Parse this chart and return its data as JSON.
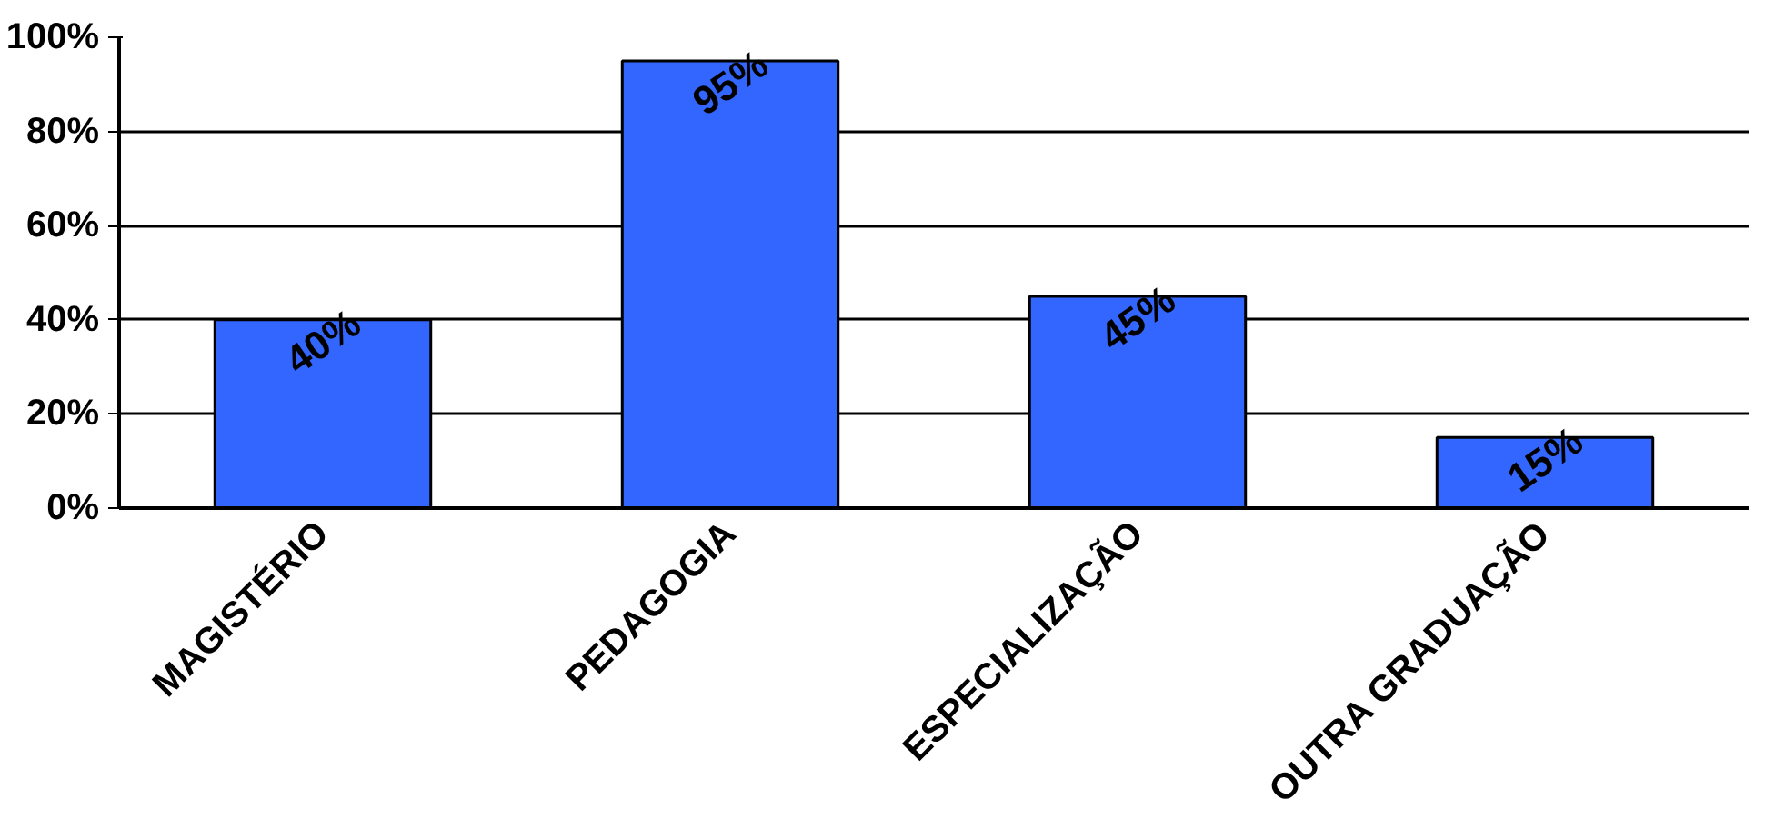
{
  "chart_data": {
    "type": "bar",
    "categories": [
      "MAGISTÉRIO",
      "PEDAGOGIA",
      "ESPECIALIZAÇÃO",
      "OUTRA GRADUAÇÃO"
    ],
    "values": [
      40,
      95,
      45,
      15
    ],
    "value_labels": [
      "40%",
      "95%",
      "45%",
      "15%"
    ],
    "color": "#3366ff",
    "ylim": [
      0,
      100
    ],
    "yticks": [
      {
        "value": 0,
        "label": "0%"
      },
      {
        "value": 20,
        "label": "20%"
      },
      {
        "value": 40,
        "label": "40%"
      },
      {
        "value": 60,
        "label": "60%"
      },
      {
        "value": 80,
        "label": "80%"
      },
      {
        "value": 100,
        "label": "100%"
      }
    ],
    "grid": "y"
  }
}
